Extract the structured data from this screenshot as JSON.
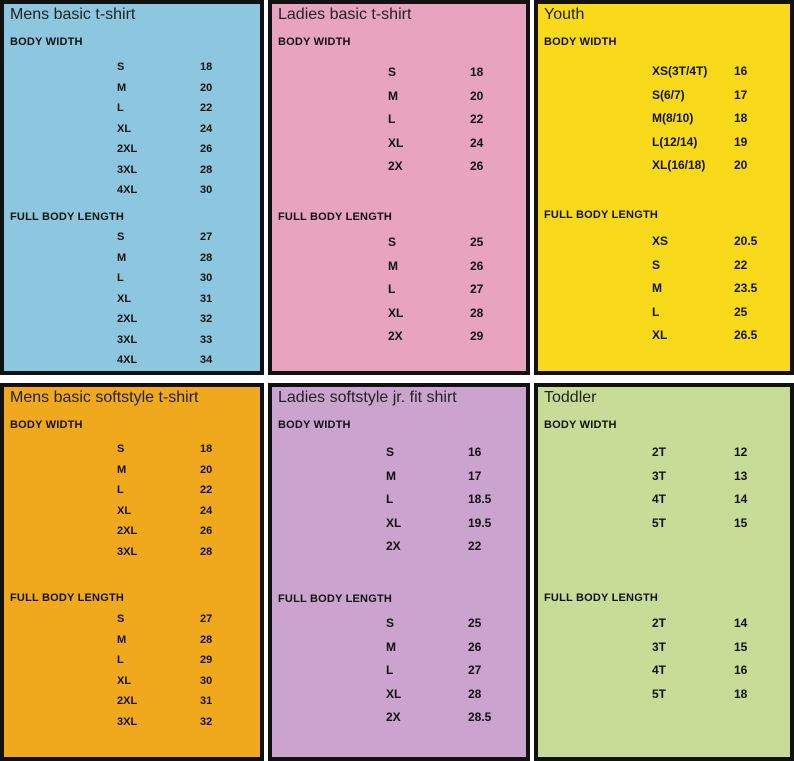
{
  "panels": [
    {
      "key": "mens-basic",
      "title": "Mens basic t-shirt",
      "bg": "#8cc7df",
      "body_width_label": "BODY WIDTH",
      "body_width": [
        [
          "S",
          "18"
        ],
        [
          "M",
          "20"
        ],
        [
          "L",
          "22"
        ],
        [
          "XL",
          "24"
        ],
        [
          "2XL",
          "26"
        ],
        [
          "3XL",
          "28"
        ],
        [
          "4XL",
          "30"
        ]
      ],
      "length_label": "FULL BODY LENGTH",
      "length": [
        [
          "S",
          "27"
        ],
        [
          "M",
          "28"
        ],
        [
          "L",
          "30"
        ],
        [
          "XL",
          "31"
        ],
        [
          "2XL",
          "32"
        ],
        [
          "3XL",
          "33"
        ],
        [
          "4XL",
          "34"
        ]
      ]
    },
    {
      "key": "ladies-basic",
      "title": "Ladies basic t-shirt",
      "bg": "#e8a3be",
      "body_width_label": "BODY WIDTH",
      "body_width": [
        [
          "S",
          "18"
        ],
        [
          "M",
          "20"
        ],
        [
          "L",
          "22"
        ],
        [
          "XL",
          "24"
        ],
        [
          "2X",
          "26"
        ]
      ],
      "length_label": "FULL BODY LENGTH",
      "length": [
        [
          "S",
          "25"
        ],
        [
          "M",
          "26"
        ],
        [
          "L",
          "27"
        ],
        [
          "XL",
          "28"
        ],
        [
          "2X",
          "29"
        ]
      ]
    },
    {
      "key": "youth",
      "title": "Youth",
      "bg": "#f8da1b",
      "body_width_label": "BODY WIDTH",
      "body_width": [
        [
          "XS(3T/4T)",
          "16"
        ],
        [
          "S(6/7)",
          "17"
        ],
        [
          "M(8/10)",
          "18"
        ],
        [
          "L(12/14)",
          "19"
        ],
        [
          "XL(16/18)",
          "20"
        ]
      ],
      "length_label": "FULL BODY LENGTH",
      "length": [
        [
          "XS",
          "20.5"
        ],
        [
          "S",
          "22"
        ],
        [
          "M",
          "23.5"
        ],
        [
          "L",
          "25"
        ],
        [
          "XL",
          "26.5"
        ]
      ]
    },
    {
      "key": "mens-softstyle",
      "title": "Mens basic softstyle t-shirt",
      "bg": "#f0a81d",
      "body_width_label": "BODY WIDTH",
      "body_width": [
        [
          "S",
          "18"
        ],
        [
          "M",
          "20"
        ],
        [
          "L",
          "22"
        ],
        [
          "XL",
          "24"
        ],
        [
          "2XL",
          "26"
        ],
        [
          "3XL",
          "28"
        ]
      ],
      "length_label": "FULL BODY LENGTH",
      "length": [
        [
          "S",
          "27"
        ],
        [
          "M",
          "28"
        ],
        [
          "L",
          "29"
        ],
        [
          "XL",
          "30"
        ],
        [
          "2XL",
          "31"
        ],
        [
          "3XL",
          "32"
        ]
      ]
    },
    {
      "key": "ladies-softstyle",
      "title": "Ladies softstyle jr. fit shirt",
      "bg": "#cba3cf",
      "body_width_label": "BODY WIDTH",
      "body_width": [
        [
          "S",
          "16"
        ],
        [
          "M",
          "17"
        ],
        [
          "L",
          "18.5"
        ],
        [
          "XL",
          "19.5"
        ],
        [
          "2X",
          "22"
        ]
      ],
      "length_label": "FULL BODY LENGTH",
      "length": [
        [
          "S",
          "25"
        ],
        [
          "M",
          "26"
        ],
        [
          "L",
          "27"
        ],
        [
          "XL",
          "28"
        ],
        [
          "2X",
          "28.5"
        ]
      ]
    },
    {
      "key": "toddler",
      "title": "Toddler",
      "bg": "#c6dc97",
      "body_width_label": "BODY WIDTH",
      "body_width": [
        [
          "2T",
          "12"
        ],
        [
          "3T",
          "13"
        ],
        [
          "4T",
          "14"
        ],
        [
          "5T",
          "15"
        ]
      ],
      "length_label": "FULL BODY LENGTH",
      "length": [
        [
          "2T",
          "14"
        ],
        [
          "3T",
          "15"
        ],
        [
          "4T",
          "16"
        ],
        [
          "5T",
          "18"
        ]
      ]
    }
  ]
}
